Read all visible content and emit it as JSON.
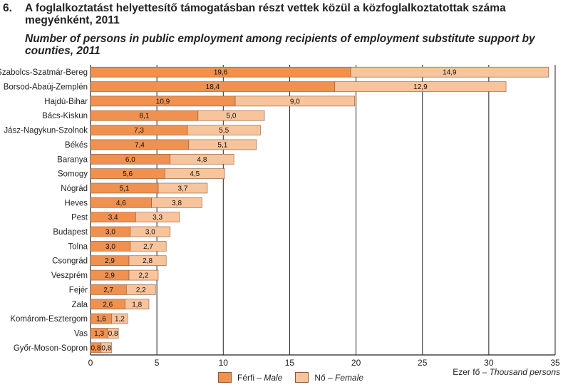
{
  "header": {
    "number": "6.",
    "title_hu": "A foglalkoztatást helyettesítő támogatásban részt vettek közül a közfoglalkoztatottak száma megyénként, 2011",
    "title_en": "Number of persons in public employment among recipients of employment substitute support by counties, 2011"
  },
  "legend": {
    "male_hu": "Férfi – ",
    "male_en": "Male",
    "female_hu": "Nő – ",
    "female_en": "Female"
  },
  "unit": {
    "hu": "Ezer fő – ",
    "en": "Thousand persons"
  },
  "colors": {
    "male": "#f0914f",
    "female": "#f8c49c",
    "bar_edge": "#8a5a3a"
  },
  "chart_data": {
    "type": "bar",
    "orientation": "horizontal",
    "stacked": true,
    "categories": [
      "Szabolcs-Szatmár-Bereg",
      "Borsod-Abaúj-Zemplén",
      "Hajdú-Bihar",
      "Bács-Kiskun",
      "Jász-Nagykun-Szolnok",
      "Békés",
      "Baranya",
      "Somogy",
      "Nógrád",
      "Heves",
      "Pest",
      "Budapest",
      "Tolna",
      "Csongrád",
      "Veszprém",
      "Fejér",
      "Zala",
      "Komárom-Esztergom",
      "Vas",
      "Győr-Moson-Sopron"
    ],
    "series": [
      {
        "name": "Férfi – Male",
        "values": [
          19.6,
          18.4,
          10.9,
          8.1,
          7.3,
          7.4,
          6.0,
          5.6,
          5.1,
          4.6,
          3.4,
          3.0,
          3.0,
          2.9,
          2.9,
          2.7,
          2.6,
          1.6,
          1.3,
          0.8
        ],
        "labels": [
          "19,6",
          "18,4",
          "10,9",
          "8,1",
          "7,3",
          "7,4",
          "6,0",
          "5,6",
          "5,1",
          "4,6",
          "3,4",
          "3,0",
          "3,0",
          "2,9",
          "2,9",
          "2,7",
          "2,6",
          "1,6",
          "1,3",
          "0,8"
        ]
      },
      {
        "name": "Nő – Female",
        "values": [
          14.9,
          12.9,
          9.0,
          5.0,
          5.5,
          5.1,
          4.8,
          4.5,
          3.7,
          3.8,
          3.3,
          3.0,
          2.7,
          2.8,
          2.2,
          2.2,
          1.8,
          1.2,
          0.8,
          0.8
        ],
        "labels": [
          "14,9",
          "12,9",
          "9,0",
          "5,0",
          "5,5",
          "5,1",
          "4,8",
          "4,5",
          "3,7",
          "3,8",
          "3,3",
          "3,0",
          "2,7",
          "2,8",
          "2,2",
          "2,2",
          "1,8",
          "1,2",
          "0,8",
          "0,8"
        ]
      }
    ],
    "xlim": [
      0,
      35
    ],
    "xticks": [
      0,
      5,
      10,
      15,
      20,
      25,
      30,
      35
    ],
    "grid": true,
    "legend_position": "bottom"
  }
}
